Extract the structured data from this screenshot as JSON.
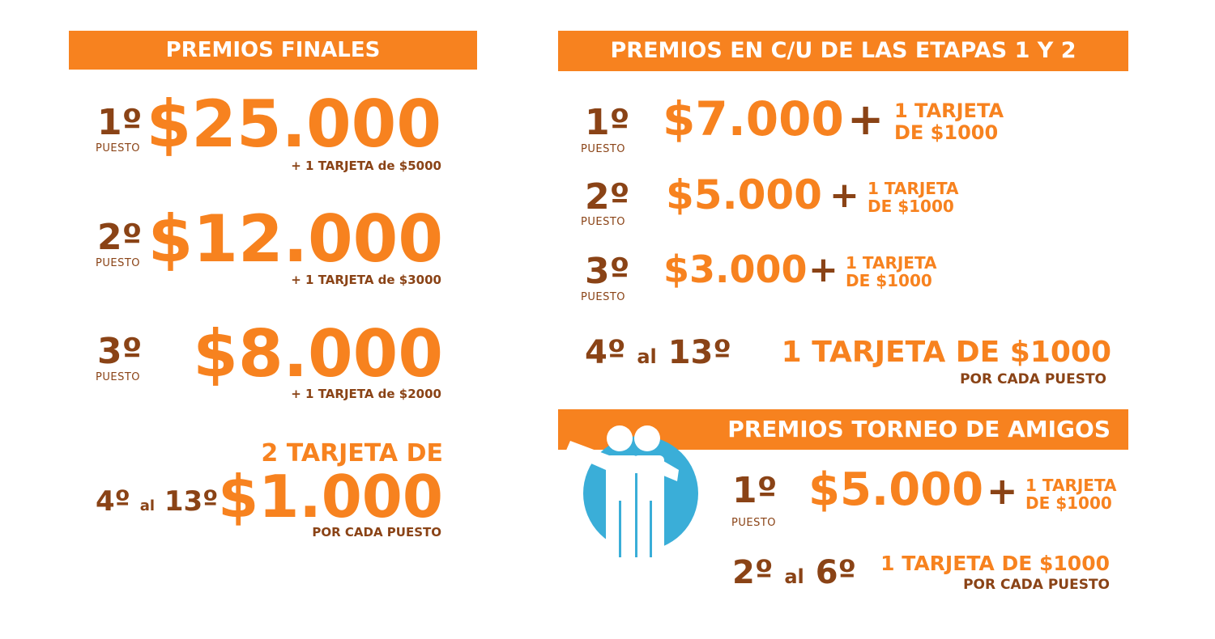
{
  "left": {
    "header": "PREMIOS FINALES",
    "p1": {
      "rank": "1º",
      "puesto": "PUESTO",
      "amount": "$25.000",
      "extra": "+ 1 TARJETA de $5000"
    },
    "p2": {
      "rank": "2º",
      "puesto": "PUESTO",
      "amount": "$12.000",
      "extra": "+ 1 TARJETA de $3000"
    },
    "p3": {
      "rank": "3º",
      "puesto": "PUESTO",
      "amount": "$8.000",
      "extra": "+ 1 TARJETA de $2000"
    },
    "p4": {
      "rank_from": "4º",
      "al": "al",
      "rank_to": "13º",
      "label": "2 TARJETA DE",
      "amount": "$1.000",
      "extra": "POR CADA PUESTO"
    }
  },
  "right": {
    "header": "PREMIOS EN C/U DE LAS ETAPAS  1 Y 2",
    "p1": {
      "rank": "1º",
      "puesto": "PUESTO",
      "amount": "$7.000",
      "plus": "+",
      "card_l1": "1 TARJETA",
      "card_l2": "DE $1000"
    },
    "p2": {
      "rank": "2º",
      "puesto": "PUESTO",
      "amount": "$5.000",
      "plus": "+",
      "card_l1": "1 TARJETA",
      "card_l2": "DE $1000"
    },
    "p3": {
      "rank": "3º",
      "puesto": "PUESTO",
      "amount": "$3.000",
      "plus": "+",
      "card_l1": "1 TARJETA",
      "card_l2": "DE $1000"
    },
    "p4": {
      "rank_from": "4º",
      "al": "al",
      "rank_to": "13º",
      "prize": "1 TARJETA DE $1000",
      "extra": "POR CADA PUESTO"
    }
  },
  "friends": {
    "header": "PREMIOS TORNEO DE AMIGOS",
    "icon": "friends-icon",
    "p1": {
      "rank": "1º",
      "puesto": "PUESTO",
      "amount": "$5.000",
      "plus": "+",
      "card_l1": "1 TARJETA",
      "card_l2": "DE $1000"
    },
    "p2": {
      "rank_from": "2º",
      "al": "al",
      "rank_to": "6º",
      "prize": "1 TARJETA DE $1000",
      "extra": "POR CADA PUESTO"
    }
  },
  "colors": {
    "orange": "#f7821f",
    "brown": "#8a4316",
    "blue": "#3aaed8"
  }
}
